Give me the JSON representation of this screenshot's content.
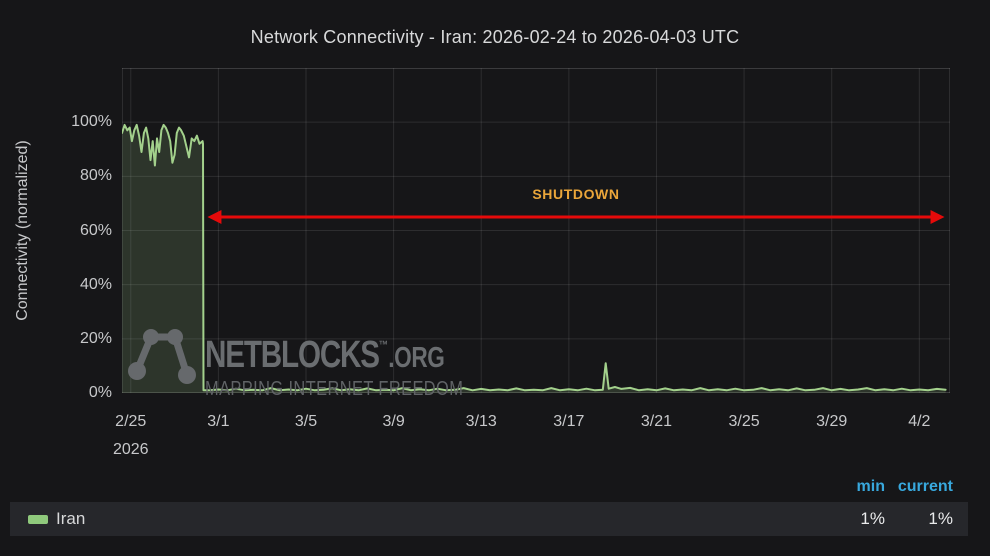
{
  "title": "Network Connectivity - Iran: 2026-02-24 to 2026-04-03 UTC",
  "colors": {
    "background": "#161618",
    "grid": "rgba(255,255,255,0.10)",
    "frame": "rgba(255,255,255,0.16)",
    "tick_text": "#c7c8ca",
    "series_green": "#a3d18c",
    "series_fill": "rgba(163,209,140,0.17)",
    "annotation_red": "#e60a0a",
    "annotation_orange": "#eba63a",
    "legend_header_blue": "#38a8dd",
    "legend_row_bg": "#26272b",
    "watermark_gray": "#66696c"
  },
  "chart_data": {
    "type": "area",
    "title": "Network Connectivity - Iran: 2026-02-24 to 2026-04-03 UTC",
    "xlabel": "",
    "ylabel": "Connectivity (normalized)",
    "x_unit": "days since 2026-02-24 00:00 UTC",
    "xlim": [
      0.6,
      38.4
    ],
    "ylim": [
      0,
      120
    ],
    "grid": true,
    "y_ticks": [
      {
        "value": 0,
        "label": "0%"
      },
      {
        "value": 20,
        "label": "20%"
      },
      {
        "value": 40,
        "label": "40%"
      },
      {
        "value": 60,
        "label": "60%"
      },
      {
        "value": 80,
        "label": "80%"
      },
      {
        "value": 100,
        "label": "100%"
      }
    ],
    "x_ticks": [
      {
        "value": 1,
        "label": "2/25",
        "sublabel": "2026"
      },
      {
        "value": 5,
        "label": "3/1"
      },
      {
        "value": 9,
        "label": "3/5"
      },
      {
        "value": 13,
        "label": "3/9"
      },
      {
        "value": 17,
        "label": "3/13"
      },
      {
        "value": 21,
        "label": "3/17"
      },
      {
        "value": 25,
        "label": "3/21"
      },
      {
        "value": 29,
        "label": "3/25"
      },
      {
        "value": 33,
        "label": "3/29"
      },
      {
        "value": 37,
        "label": "4/2"
      }
    ],
    "series": [
      {
        "name": "Iran",
        "min": "1%",
        "current": "1%",
        "points": [
          [
            0.6,
            96
          ],
          [
            0.72,
            99
          ],
          [
            0.84,
            97
          ],
          [
            0.95,
            98
          ],
          [
            1.05,
            93
          ],
          [
            1.16,
            97
          ],
          [
            1.27,
            99
          ],
          [
            1.38,
            95
          ],
          [
            1.49,
            89
          ],
          [
            1.6,
            96
          ],
          [
            1.7,
            98
          ],
          [
            1.8,
            94
          ],
          [
            1.9,
            86
          ],
          [
            2.0,
            93
          ],
          [
            2.1,
            84
          ],
          [
            2.2,
            94
          ],
          [
            2.3,
            89
          ],
          [
            2.4,
            97
          ],
          [
            2.5,
            99
          ],
          [
            2.6,
            98
          ],
          [
            2.7,
            96
          ],
          [
            2.8,
            93
          ],
          [
            2.9,
            85
          ],
          [
            3.0,
            88
          ],
          [
            3.1,
            96
          ],
          [
            3.2,
            98
          ],
          [
            3.3,
            97
          ],
          [
            3.42,
            95
          ],
          [
            3.54,
            91
          ],
          [
            3.66,
            87
          ],
          [
            3.78,
            94
          ],
          [
            3.9,
            93
          ],
          [
            4.02,
            95
          ],
          [
            4.14,
            92
          ],
          [
            4.28,
            93
          ],
          [
            4.3,
            92
          ],
          [
            4.32,
            1
          ],
          [
            4.6,
            1
          ],
          [
            5,
            1.3
          ],
          [
            5.4,
            1
          ],
          [
            5.8,
            1.6
          ],
          [
            6.2,
            1
          ],
          [
            6.6,
            1.2
          ],
          [
            7,
            1
          ],
          [
            7.4,
            1.8
          ],
          [
            7.8,
            1
          ],
          [
            8.2,
            1.3
          ],
          [
            8.6,
            1
          ],
          [
            9,
            1.6
          ],
          [
            9.4,
            1
          ],
          [
            9.8,
            1.2
          ],
          [
            10.2,
            1.8
          ],
          [
            10.6,
            1
          ],
          [
            11,
            1.4
          ],
          [
            11.4,
            1
          ],
          [
            11.8,
            1.7
          ],
          [
            12.2,
            1
          ],
          [
            12.6,
            1.2
          ],
          [
            13,
            1
          ],
          [
            13.4,
            1.8
          ],
          [
            13.8,
            1
          ],
          [
            14.2,
            1.4
          ],
          [
            14.6,
            1
          ],
          [
            15,
            1.6
          ],
          [
            15.4,
            1
          ],
          [
            15.8,
            1.2
          ],
          [
            16.2,
            1.8
          ],
          [
            16.6,
            1
          ],
          [
            17,
            1.5
          ],
          [
            17.4,
            1
          ],
          [
            17.8,
            1.3
          ],
          [
            18.2,
            1
          ],
          [
            18.6,
            1.7
          ],
          [
            19,
            1
          ],
          [
            19.4,
            1.2
          ],
          [
            19.8,
            1
          ],
          [
            20.2,
            1.8
          ],
          [
            20.6,
            1
          ],
          [
            21,
            1.4
          ],
          [
            21.4,
            1
          ],
          [
            21.8,
            1.6
          ],
          [
            22.2,
            1
          ],
          [
            22.55,
            1.2
          ],
          [
            22.68,
            11
          ],
          [
            22.82,
            1.6
          ],
          [
            23.1,
            2.2
          ],
          [
            23.4,
            1.5
          ],
          [
            23.8,
            1.9
          ],
          [
            24.2,
            1
          ],
          [
            24.6,
            1.4
          ],
          [
            25,
            1
          ],
          [
            25.4,
            1.7
          ],
          [
            25.8,
            1
          ],
          [
            26.2,
            1.3
          ],
          [
            26.6,
            1
          ],
          [
            27,
            1.8
          ],
          [
            27.4,
            1
          ],
          [
            27.8,
            1.4
          ],
          [
            28.2,
            1
          ],
          [
            28.6,
            1.6
          ],
          [
            29,
            1
          ],
          [
            29.4,
            1.2
          ],
          [
            29.8,
            1.8
          ],
          [
            30.2,
            1
          ],
          [
            30.6,
            1.4
          ],
          [
            31,
            1
          ],
          [
            31.4,
            1.7
          ],
          [
            31.8,
            1
          ],
          [
            32.2,
            1.2
          ],
          [
            32.6,
            1.8
          ],
          [
            33,
            1
          ],
          [
            33.4,
            1.5
          ],
          [
            33.8,
            1
          ],
          [
            34.2,
            1.3
          ],
          [
            34.6,
            1.8
          ],
          [
            35,
            1
          ],
          [
            35.4,
            1.4
          ],
          [
            35.8,
            1
          ],
          [
            36.2,
            1.6
          ],
          [
            36.6,
            1
          ],
          [
            37,
            1.3
          ],
          [
            37.4,
            1
          ],
          [
            37.8,
            1.5
          ],
          [
            38.2,
            1.2
          ]
        ]
      }
    ],
    "annotation": {
      "label": "SHUTDOWN",
      "x_from": 4.5,
      "x_to": 38.15,
      "y": 65
    },
    "legend_position": "bottom"
  },
  "watermark": {
    "line1": "NETBLOCKS",
    "tm": "™",
    "org": ".ORG",
    "line2": "MAPPING INTERNET FREEDOM"
  },
  "legend": {
    "headers": {
      "min": "min",
      "current": "current"
    },
    "rows": [
      {
        "name": "Iran",
        "swatch": "#8fc97c",
        "min": "1%",
        "current": "1%"
      }
    ]
  }
}
